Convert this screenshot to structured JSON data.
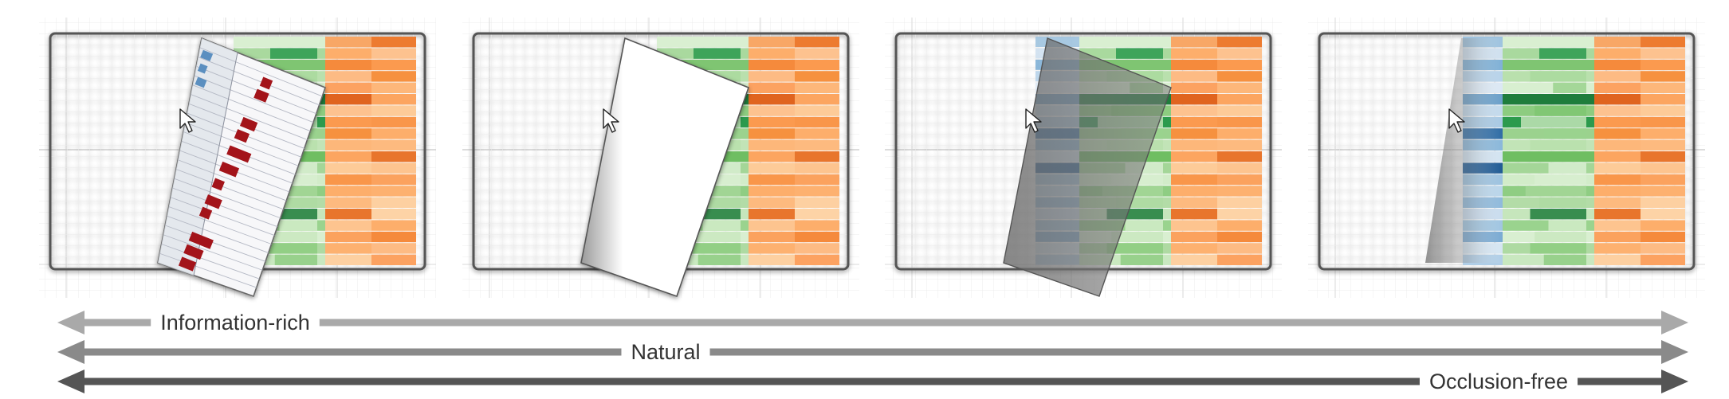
{
  "panels": [
    {
      "id": "panel-1",
      "variant": "flip-chart"
    },
    {
      "id": "panel-2",
      "variant": "blank-card"
    },
    {
      "id": "panel-3",
      "variant": "translucent-card"
    },
    {
      "id": "panel-4",
      "variant": "gradient-peel"
    }
  ],
  "colors": {
    "blue_header": "#5b8fc0",
    "green_header": "#8fcf84",
    "orange_header": "#f58a3c",
    "flip_bar": "#a3141a",
    "arrow_light": "#a9a9a9",
    "arrow_mid": "#8a8a8a",
    "arrow_dark": "#555555"
  },
  "icons": {
    "cursor": "mouse-pointer-icon"
  },
  "scales": [
    {
      "label": "Information-rich",
      "direction": "left-to-right",
      "tone": "light"
    },
    {
      "label": "Natural",
      "direction": "left-to-right",
      "tone": "mid"
    },
    {
      "label": "Occlusion-free",
      "direction": "left-to-right",
      "tone": "dark"
    }
  ]
}
